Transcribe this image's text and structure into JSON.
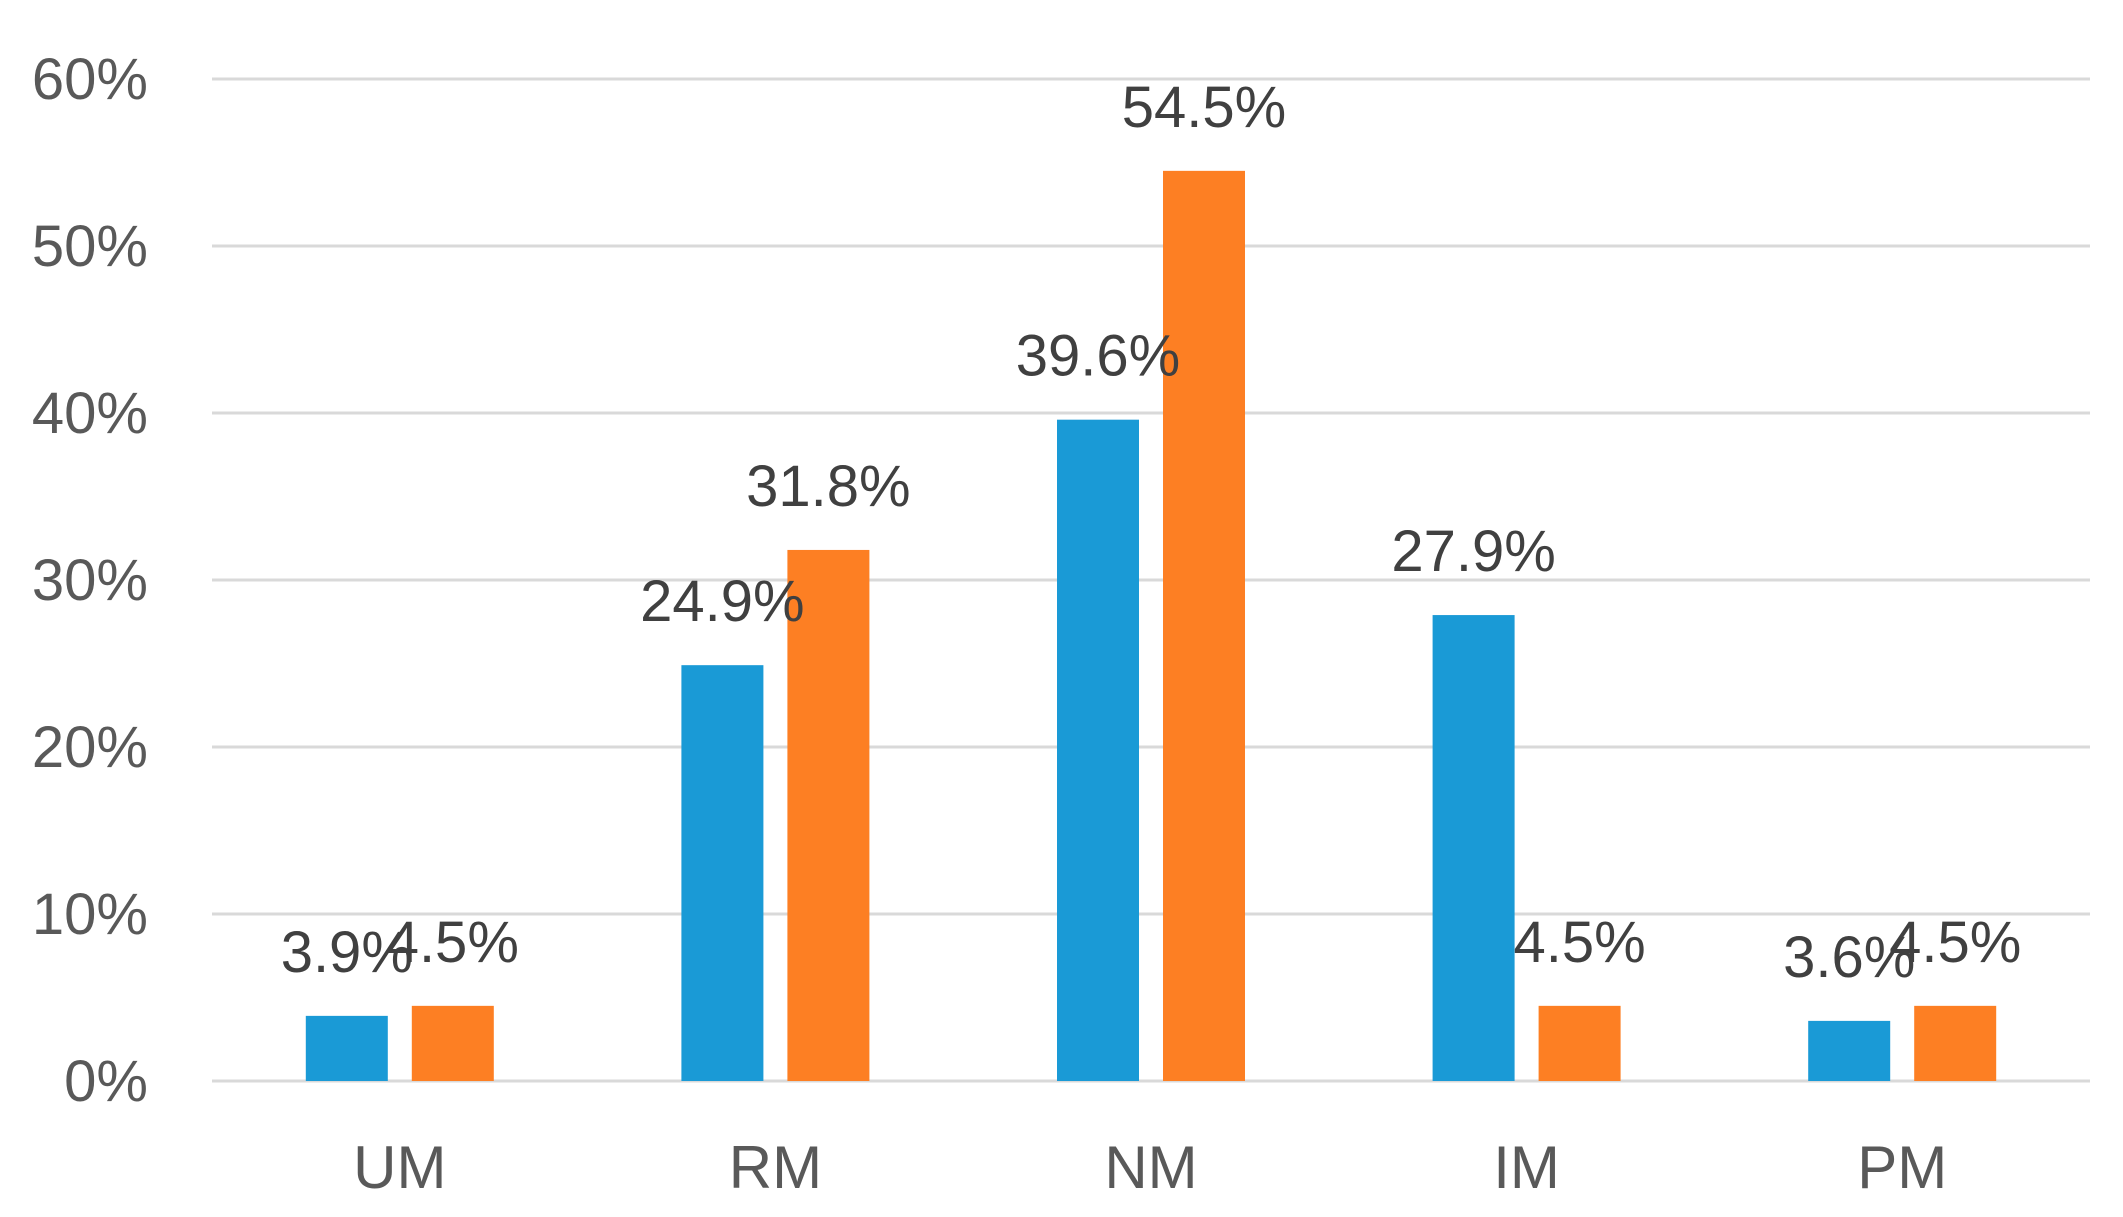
{
  "chart_data": {
    "type": "bar",
    "title": "",
    "xlabel": "",
    "ylabel": "",
    "categories": [
      "UM",
      "RM",
      "NM",
      "IM",
      "PM"
    ],
    "series": [
      {
        "values": [
          3.9,
          24.9,
          39.6,
          27.9,
          3.6
        ],
        "labels": [
          "3.9%",
          "24.9%",
          "39.6%",
          "27.9%",
          "3.6%"
        ],
        "color": "#1a9ad6"
      },
      {
        "values": [
          4.5,
          31.8,
          54.5,
          4.5,
          4.5
        ],
        "labels": [
          "4.5%",
          "31.8%",
          "54.5%",
          "4.5%",
          "4.5%"
        ],
        "color": "#fd7f23"
      }
    ],
    "ylim": [
      0,
      60
    ],
    "yticks": [
      0,
      10,
      20,
      30,
      40,
      50,
      60
    ],
    "ytick_labels": [
      "0%",
      "10%",
      "20%",
      "30%",
      "40%",
      "50%",
      "60%"
    ],
    "grid": true,
    "legend": "none"
  }
}
